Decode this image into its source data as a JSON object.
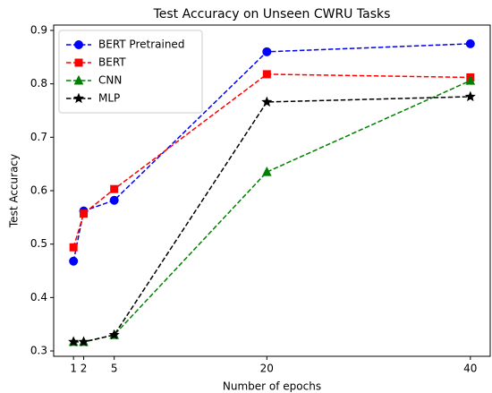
{
  "chart_data": {
    "type": "line",
    "title": "Test Accuracy on Unseen CWRU Tasks",
    "xlabel": "Number of epochs",
    "ylabel": "Test Accuracy",
    "x": [
      1,
      2,
      5,
      20,
      40
    ],
    "series": [
      {
        "name": "BERT Pretrained",
        "color": "#0000ff",
        "marker": "circle",
        "values": [
          0.468,
          0.562,
          0.582,
          0.86,
          0.875
        ]
      },
      {
        "name": "BERT",
        "color": "#ff0000",
        "marker": "square",
        "values": [
          0.494,
          0.557,
          0.603,
          0.818,
          0.812
        ]
      },
      {
        "name": "CNN",
        "color": "#008000",
        "marker": "triangle",
        "values": [
          0.317,
          0.317,
          0.33,
          0.635,
          0.806
        ]
      },
      {
        "name": "MLP",
        "color": "#000000",
        "marker": "star",
        "values": [
          0.317,
          0.317,
          0.33,
          0.766,
          0.776
        ]
      }
    ],
    "xlim": [
      -0.95,
      41.95
    ],
    "xticks": [
      1,
      2,
      5,
      20,
      40
    ],
    "ylim": [
      0.29,
      0.91
    ],
    "yticks": [
      0.3,
      0.4,
      0.5,
      0.6,
      0.7,
      0.8,
      0.9
    ],
    "legend": "upper left",
    "grid": false
  }
}
